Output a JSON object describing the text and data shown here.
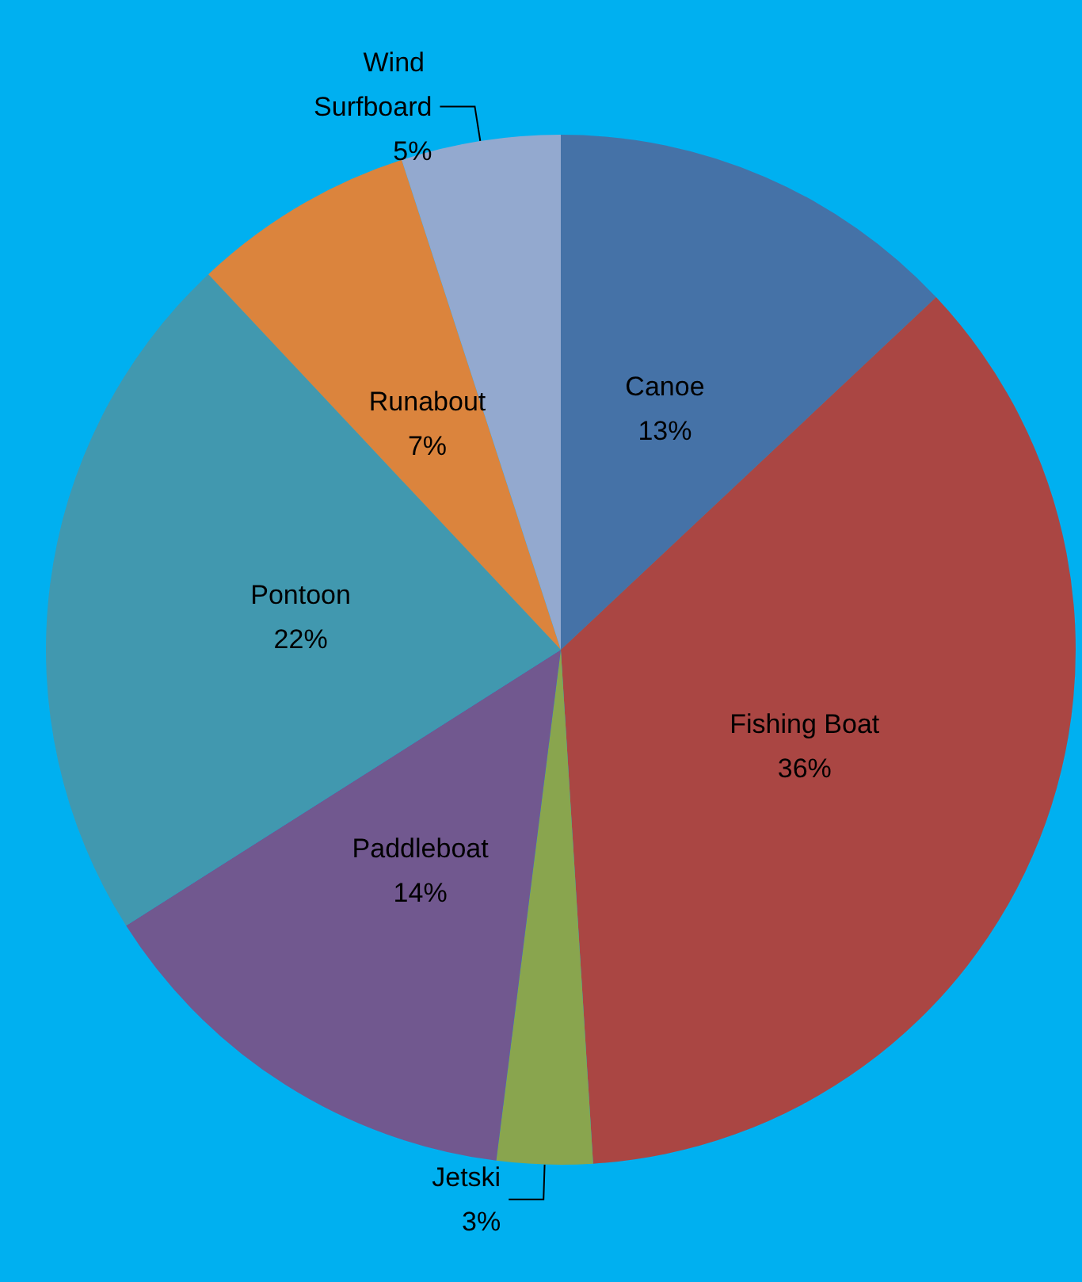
{
  "chart_data": {
    "type": "pie",
    "categories": [
      "Canoe",
      "Fishing Boat",
      "Jetski",
      "Paddleboat",
      "Pontoon",
      "Runabout",
      "Wind Surfboard"
    ],
    "values": [
      13,
      36,
      3,
      14,
      22,
      7,
      5
    ],
    "colors": [
      "#4572a7",
      "#aa4643",
      "#89a54e",
      "#71588f",
      "#4198af",
      "#db843d",
      "#93a9cf"
    ],
    "value_labels": [
      "13%",
      "36%",
      "3%",
      "14%",
      "22%",
      "7%",
      "5%"
    ],
    "legend": false
  }
}
